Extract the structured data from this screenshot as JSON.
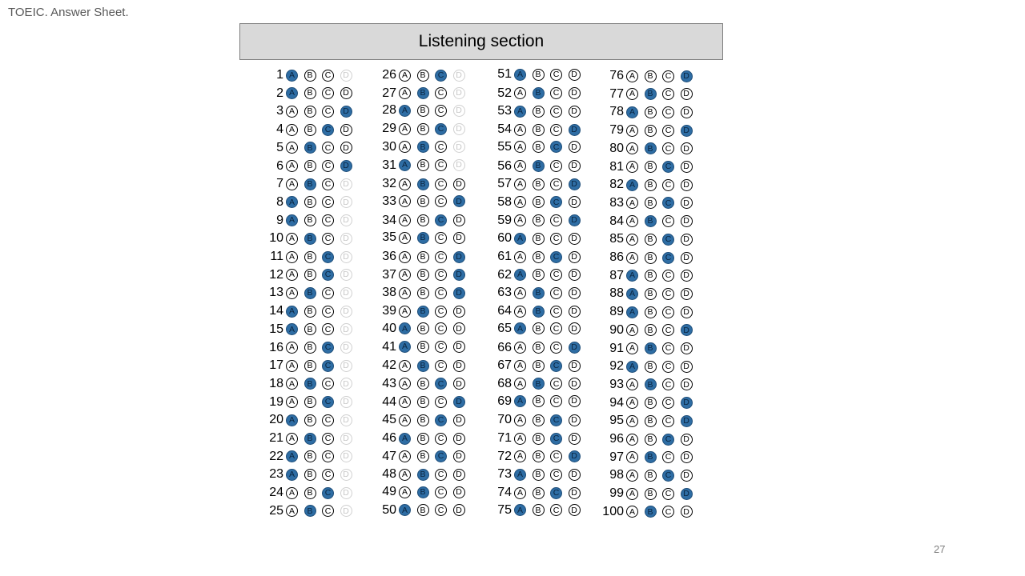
{
  "document": {
    "title": "TOEIC. Answer Sheet.",
    "section_title": "Listening section",
    "page_number": "27"
  },
  "colors": {
    "filled_bubble": "#2e6da4",
    "header_background": "#d9d9d9",
    "faint_bubble": "#d0d0d0"
  },
  "choice_labels": [
    "A",
    "B",
    "C",
    "D"
  ],
  "columns": [
    {
      "questions": [
        {
          "number": "1",
          "answer": "A",
          "faint": [
            "D"
          ]
        },
        {
          "number": "2",
          "answer": "A",
          "faint": []
        },
        {
          "number": "3",
          "answer": "D",
          "faint": []
        },
        {
          "number": "4",
          "answer": "C",
          "faint": []
        },
        {
          "number": "5",
          "answer": "B",
          "faint": []
        },
        {
          "number": "6",
          "answer": "D",
          "faint": []
        },
        {
          "number": "7",
          "answer": "B",
          "faint": [
            "D"
          ]
        },
        {
          "number": "8",
          "answer": "A",
          "faint": [
            "D"
          ]
        },
        {
          "number": "9",
          "answer": "A",
          "faint": [
            "D"
          ]
        },
        {
          "number": "10",
          "answer": "B",
          "faint": [
            "D"
          ]
        },
        {
          "number": "11",
          "answer": "C",
          "faint": [
            "D"
          ]
        },
        {
          "number": "12",
          "answer": "C",
          "faint": [
            "D"
          ]
        },
        {
          "number": "13",
          "answer": "B",
          "faint": [
            "D"
          ]
        },
        {
          "number": "14",
          "answer": "A",
          "faint": [
            "D"
          ]
        },
        {
          "number": "15",
          "answer": "A",
          "faint": [
            "D"
          ]
        },
        {
          "number": "16",
          "answer": "C",
          "faint": [
            "D"
          ]
        },
        {
          "number": "17",
          "answer": "C",
          "faint": [
            "D"
          ]
        },
        {
          "number": "18",
          "answer": "B",
          "faint": [
            "D"
          ]
        },
        {
          "number": "19",
          "answer": "C",
          "faint": [
            "D"
          ]
        },
        {
          "number": "20",
          "answer": "A",
          "faint": [
            "D"
          ]
        },
        {
          "number": "21",
          "answer": "B",
          "faint": [
            "D"
          ]
        },
        {
          "number": "22",
          "answer": "A",
          "faint": [
            "D"
          ]
        },
        {
          "number": "23",
          "answer": "A",
          "faint": [
            "D"
          ]
        },
        {
          "number": "24",
          "answer": "C",
          "faint": [
            "D"
          ]
        },
        {
          "number": "25",
          "answer": "B",
          "faint": [
            "D"
          ]
        }
      ]
    },
    {
      "questions": [
        {
          "number": "26",
          "answer": "C",
          "faint": [
            "D"
          ]
        },
        {
          "number": "27",
          "answer": "B",
          "faint": [
            "D"
          ]
        },
        {
          "number": "28",
          "answer": "A",
          "faint": [
            "D"
          ]
        },
        {
          "number": "29",
          "answer": "C",
          "faint": [
            "D"
          ]
        },
        {
          "number": "30",
          "answer": "B",
          "faint": [
            "D"
          ]
        },
        {
          "number": "31",
          "answer": "A",
          "faint": [
            "D"
          ]
        },
        {
          "number": "32",
          "answer": "B",
          "faint": []
        },
        {
          "number": "33",
          "answer": "D",
          "faint": []
        },
        {
          "number": "34",
          "answer": "C",
          "faint": []
        },
        {
          "number": "35",
          "answer": "B",
          "faint": []
        },
        {
          "number": "36",
          "answer": "D",
          "faint": []
        },
        {
          "number": "37",
          "answer": "D",
          "faint": []
        },
        {
          "number": "38",
          "answer": "D",
          "faint": []
        },
        {
          "number": "39",
          "answer": "B",
          "faint": []
        },
        {
          "number": "40",
          "answer": "A",
          "faint": []
        },
        {
          "number": "41",
          "answer": "A",
          "faint": []
        },
        {
          "number": "42",
          "answer": "B",
          "faint": []
        },
        {
          "number": "43",
          "answer": "C",
          "faint": []
        },
        {
          "number": "44",
          "answer": "D",
          "faint": []
        },
        {
          "number": "45",
          "answer": "C",
          "faint": []
        },
        {
          "number": "46",
          "answer": "A",
          "faint": []
        },
        {
          "number": "47",
          "answer": "C",
          "faint": []
        },
        {
          "number": "48",
          "answer": "B",
          "faint": []
        },
        {
          "number": "49",
          "answer": "B",
          "faint": []
        },
        {
          "number": "50",
          "answer": "A",
          "faint": []
        }
      ]
    },
    {
      "questions": [
        {
          "number": "51",
          "answer": "A",
          "faint": []
        },
        {
          "number": "52",
          "answer": "B",
          "faint": []
        },
        {
          "number": "53",
          "answer": "A",
          "faint": []
        },
        {
          "number": "54",
          "answer": "D",
          "faint": []
        },
        {
          "number": "55",
          "answer": "C",
          "faint": []
        },
        {
          "number": "56",
          "answer": "B",
          "faint": []
        },
        {
          "number": "57",
          "answer": "D",
          "faint": []
        },
        {
          "number": "58",
          "answer": "C",
          "faint": []
        },
        {
          "number": "59",
          "answer": "D",
          "faint": []
        },
        {
          "number": "60",
          "answer": "A",
          "faint": []
        },
        {
          "number": "61",
          "answer": "C",
          "faint": []
        },
        {
          "number": "62",
          "answer": "A",
          "faint": []
        },
        {
          "number": "63",
          "answer": "B",
          "faint": []
        },
        {
          "number": "64",
          "answer": "B",
          "faint": []
        },
        {
          "number": "65",
          "answer": "A",
          "faint": []
        },
        {
          "number": "66",
          "answer": "D",
          "faint": []
        },
        {
          "number": "67",
          "answer": "C",
          "faint": []
        },
        {
          "number": "68",
          "answer": "B",
          "faint": []
        },
        {
          "number": "69",
          "answer": "A",
          "faint": []
        },
        {
          "number": "70",
          "answer": "C",
          "faint": []
        },
        {
          "number": "71",
          "answer": "C",
          "faint": []
        },
        {
          "number": "72",
          "answer": "D",
          "faint": []
        },
        {
          "number": "73",
          "answer": "A",
          "faint": []
        },
        {
          "number": "74",
          "answer": "C",
          "faint": []
        },
        {
          "number": "75",
          "answer": "A",
          "faint": []
        }
      ]
    },
    {
      "questions": [
        {
          "number": "76",
          "answer": "D",
          "faint": []
        },
        {
          "number": "77",
          "answer": "B",
          "faint": []
        },
        {
          "number": "78",
          "answer": "A",
          "faint": []
        },
        {
          "number": "79",
          "answer": "D",
          "faint": []
        },
        {
          "number": "80",
          "answer": "B",
          "faint": []
        },
        {
          "number": "81",
          "answer": "C",
          "faint": []
        },
        {
          "number": "82",
          "answer": "A",
          "faint": []
        },
        {
          "number": "83",
          "answer": "C",
          "faint": []
        },
        {
          "number": "84",
          "answer": "B",
          "faint": []
        },
        {
          "number": "85",
          "answer": "C",
          "faint": []
        },
        {
          "number": "86",
          "answer": "C",
          "faint": []
        },
        {
          "number": "87",
          "answer": "A",
          "faint": []
        },
        {
          "number": "88",
          "answer": "A",
          "faint": []
        },
        {
          "number": "89",
          "answer": "A",
          "faint": []
        },
        {
          "number": "90",
          "answer": "D",
          "faint": []
        },
        {
          "number": "91",
          "answer": "B",
          "faint": []
        },
        {
          "number": "92",
          "answer": "A",
          "faint": []
        },
        {
          "number": "93",
          "answer": "B",
          "faint": []
        },
        {
          "number": "94",
          "answer": "D",
          "faint": []
        },
        {
          "number": "95",
          "answer": "D",
          "faint": []
        },
        {
          "number": "96",
          "answer": "C",
          "faint": []
        },
        {
          "number": "97",
          "answer": "B",
          "faint": []
        },
        {
          "number": "98",
          "answer": "C",
          "faint": []
        },
        {
          "number": "99",
          "answer": "D",
          "faint": []
        },
        {
          "number": "100",
          "answer": "B",
          "faint": []
        }
      ]
    }
  ]
}
